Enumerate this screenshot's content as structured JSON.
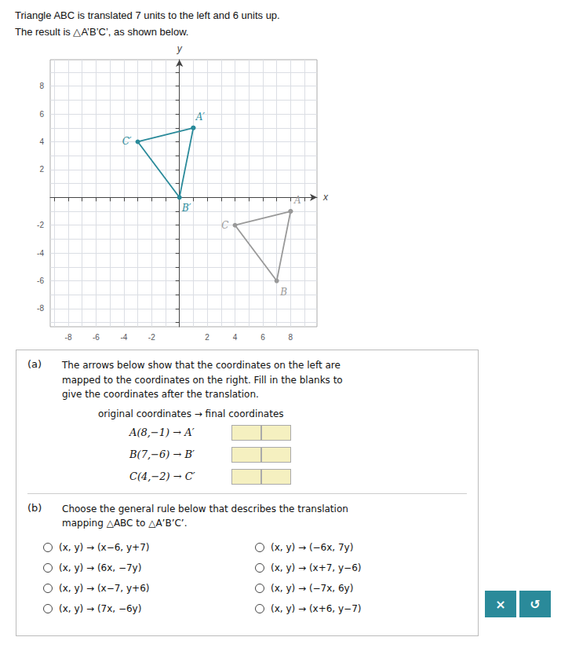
{
  "chart_data": {
    "type": "line",
    "title": "Triangle ABC is translated 7 units to the left and 6 units up.",
    "subtitle": "The result is △A’B’C’, as shown below.",
    "xlabel": "x",
    "ylabel": "y",
    "xlim": [
      -9.3,
      9.9
    ],
    "ylim": [
      -9.3,
      9.9
    ],
    "xticks": [
      {
        "value": -9,
        "label": null
      },
      -8,
      {
        "value": -7,
        "label": null
      },
      -6,
      {
        "value": -5,
        "label": null
      },
      -4,
      {
        "value": -3,
        "label": null
      },
      -2,
      {
        "value": -1,
        "label": null
      },
      {
        "value": 0,
        "label": null
      },
      {
        "value": 1,
        "label": null
      },
      2,
      {
        "value": 3,
        "label": null
      },
      4,
      {
        "value": 5,
        "label": null
      },
      6,
      {
        "value": 7,
        "label": null
      },
      8,
      {
        "value": 9,
        "label": null
      }
    ],
    "yticks": [
      {
        "value": -9,
        "label": null
      },
      -8,
      {
        "value": -7,
        "label": null
      },
      -6,
      {
        "value": -5,
        "label": null
      },
      -4,
      {
        "value": -3,
        "label": null
      },
      -2,
      {
        "value": -1,
        "label": null
      },
      {
        "value": 0,
        "label": null
      },
      {
        "value": 1,
        "label": null
      },
      2,
      {
        "value": 3,
        "label": null
      },
      4,
      {
        "value": 5,
        "label": null
      },
      6,
      {
        "value": 7,
        "label": null
      },
      8,
      {
        "value": 9,
        "label": null
      }
    ],
    "grid": true,
    "series": [
      {
        "color": "#999999",
        "marker": "circle",
        "x": [
          8,
          7,
          4,
          8
        ],
        "y": [
          -1,
          -6,
          -2,
          -1
        ],
        "labels": [
          "A",
          "B",
          "C",
          null
        ]
      },
      {
        "color": "#2a8a9a",
        "marker": "circle",
        "x": [
          1,
          0,
          -3,
          1
        ],
        "y": [
          5,
          0,
          4,
          5
        ],
        "labels": [
          "A′",
          "B′",
          "C′",
          null
        ]
      }
    ],
    "annotations": [
      "(a)",
      "The arrows below show that the coordinates on the left are\nmapped to the coordinates on the right. Fill in the blanks to\ngive the coordinates after the translation.",
      "original coordinates  →  final coordinates",
      "A(8,−1) → A′",
      "B(7,−6) → B′",
      "C(4,−2) → C′",
      "(b)",
      "Choose the general rule below that describes the translation\nmapping △ABC to △A’B’C’.",
      "(x, y) → (x−6, y+7)",
      "(x, y) → (−6x, 7y)",
      "(x, y) → (6x, −7y)",
      "(x, y) → (x+7, y−6)",
      "(x, y) → (x−7, y+6)",
      "(x, y) → (−7x, 6y)",
      "(x, y) → (7x, −6y)",
      "(x, y) → (x+6, y−7)",
      "×",
      "↺"
    ]
  }
}
